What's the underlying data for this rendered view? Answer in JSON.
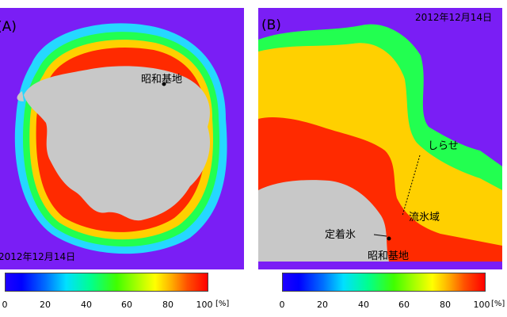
{
  "panel_a": {
    "label": "(A)",
    "date": "2012年12月14日",
    "station": "昭和基地"
  },
  "panel_b": {
    "label": "(B)",
    "date": "2012年12月14日",
    "ship": "しらせ",
    "fast_ice": "定着氷",
    "drift_ice": "流氷域",
    "station": "昭和基地"
  },
  "colorbar": {
    "ticks": [
      "0",
      "20",
      "40",
      "60",
      "80",
      "100"
    ],
    "unit": "[%]"
  },
  "colors": {
    "ocean": "#7a1ef5",
    "land": "#c8c8c8",
    "ice_high": "#ff1a00",
    "ice_mid": "#ffd000",
    "ice_low": "#30ff40"
  }
}
